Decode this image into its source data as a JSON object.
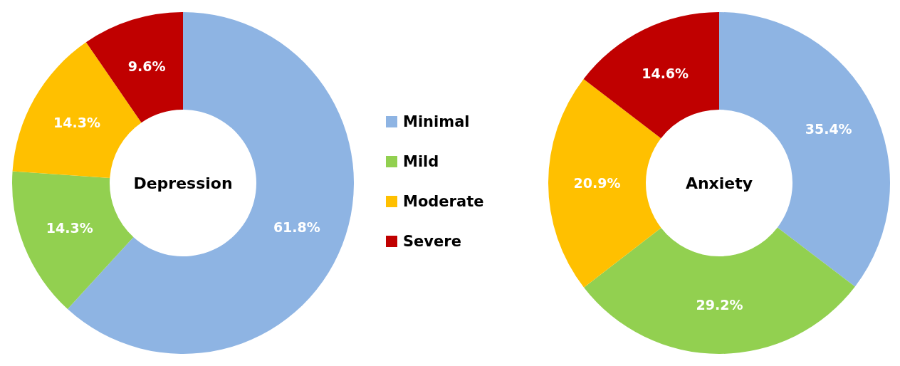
{
  "chart_data": [
    {
      "type": "donut",
      "title": "Depression",
      "categories": [
        "Minimal",
        "Mild",
        "Moderate",
        "Severe"
      ],
      "values": [
        61.8,
        14.3,
        14.3,
        9.6
      ],
      "colors": [
        "#8eb4e3",
        "#92d050",
        "#ffc000",
        "#c00000"
      ],
      "value_labels": [
        "61.8%",
        "14.3%",
        "14.3%",
        "9.6%"
      ],
      "legend": "right"
    },
    {
      "type": "donut",
      "title": "Anxiety",
      "categories": [
        null,
        null,
        null,
        null
      ],
      "values": [
        35.4,
        29.2,
        20.9,
        14.6
      ],
      "colors": [
        "#8eb4e3",
        "#92d050",
        "#ffc000",
        "#c00000"
      ],
      "value_labels": [
        "35.4%",
        "29.2%",
        "20.9%",
        "14.6%"
      ],
      "legend": false
    }
  ]
}
